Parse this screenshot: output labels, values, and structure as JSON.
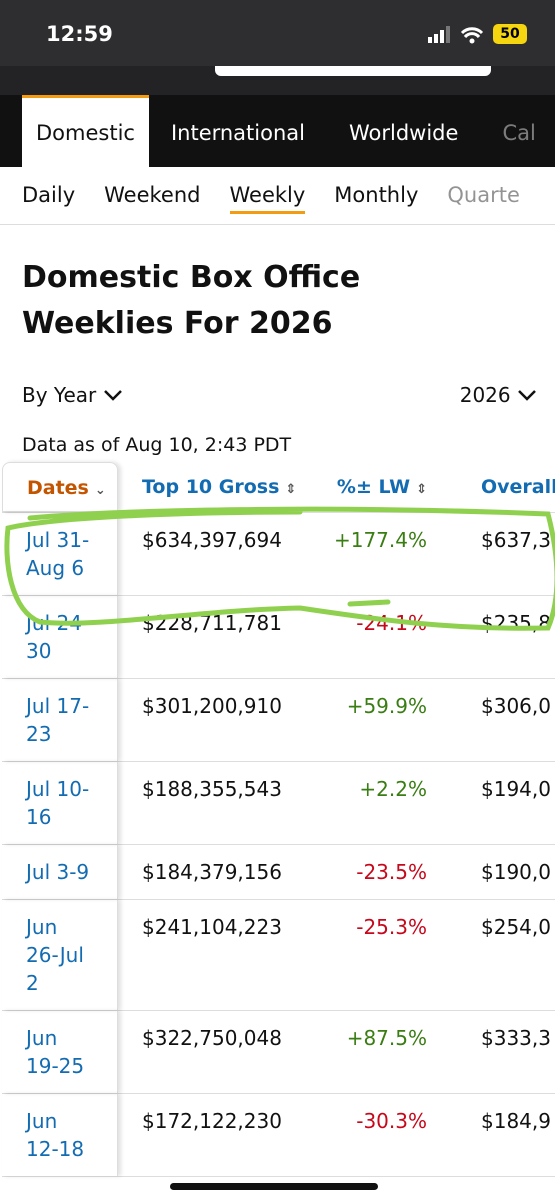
{
  "status": {
    "time": "12:59",
    "battery": "50"
  },
  "tabs": [
    "Domestic",
    "International",
    "Worldwide",
    "Cal"
  ],
  "subtabs": [
    "Daily",
    "Weekend",
    "Weekly",
    "Monthly",
    "Quarte"
  ],
  "title": "Domestic Box Office Weeklies For 2026",
  "filters": {
    "period": "By Year",
    "year": "2026"
  },
  "note": "Data as of Aug 10, 2:43 PDT",
  "table": {
    "columns": [
      "Dates",
      "Top 10 Gross",
      "%± LW",
      "Overall"
    ],
    "rows": [
      [
        "Jul 31-Aug 6",
        "$634,397,694",
        "+177.4%",
        "$637,3"
      ],
      [
        "Jul 24-30",
        "$228,711,781",
        "-24.1%",
        "$235,8"
      ],
      [
        "Jul 17-23",
        "$301,200,910",
        "+59.9%",
        "$306,0"
      ],
      [
        "Jul 10-16",
        "$188,355,543",
        "+2.2%",
        "$194,0"
      ],
      [
        "Jul 3-9",
        "$184,379,156",
        "-23.5%",
        "$190,0"
      ],
      [
        "Jun 26-Jul 2",
        "$241,104,223",
        "-25.3%",
        "$254,0"
      ],
      [
        "Jun 19-25",
        "$322,750,048",
        "+87.5%",
        "$333,3"
      ],
      [
        "Jun 12-18",
        "$172,122,230",
        "-30.3%",
        "$184,9"
      ]
    ]
  }
}
